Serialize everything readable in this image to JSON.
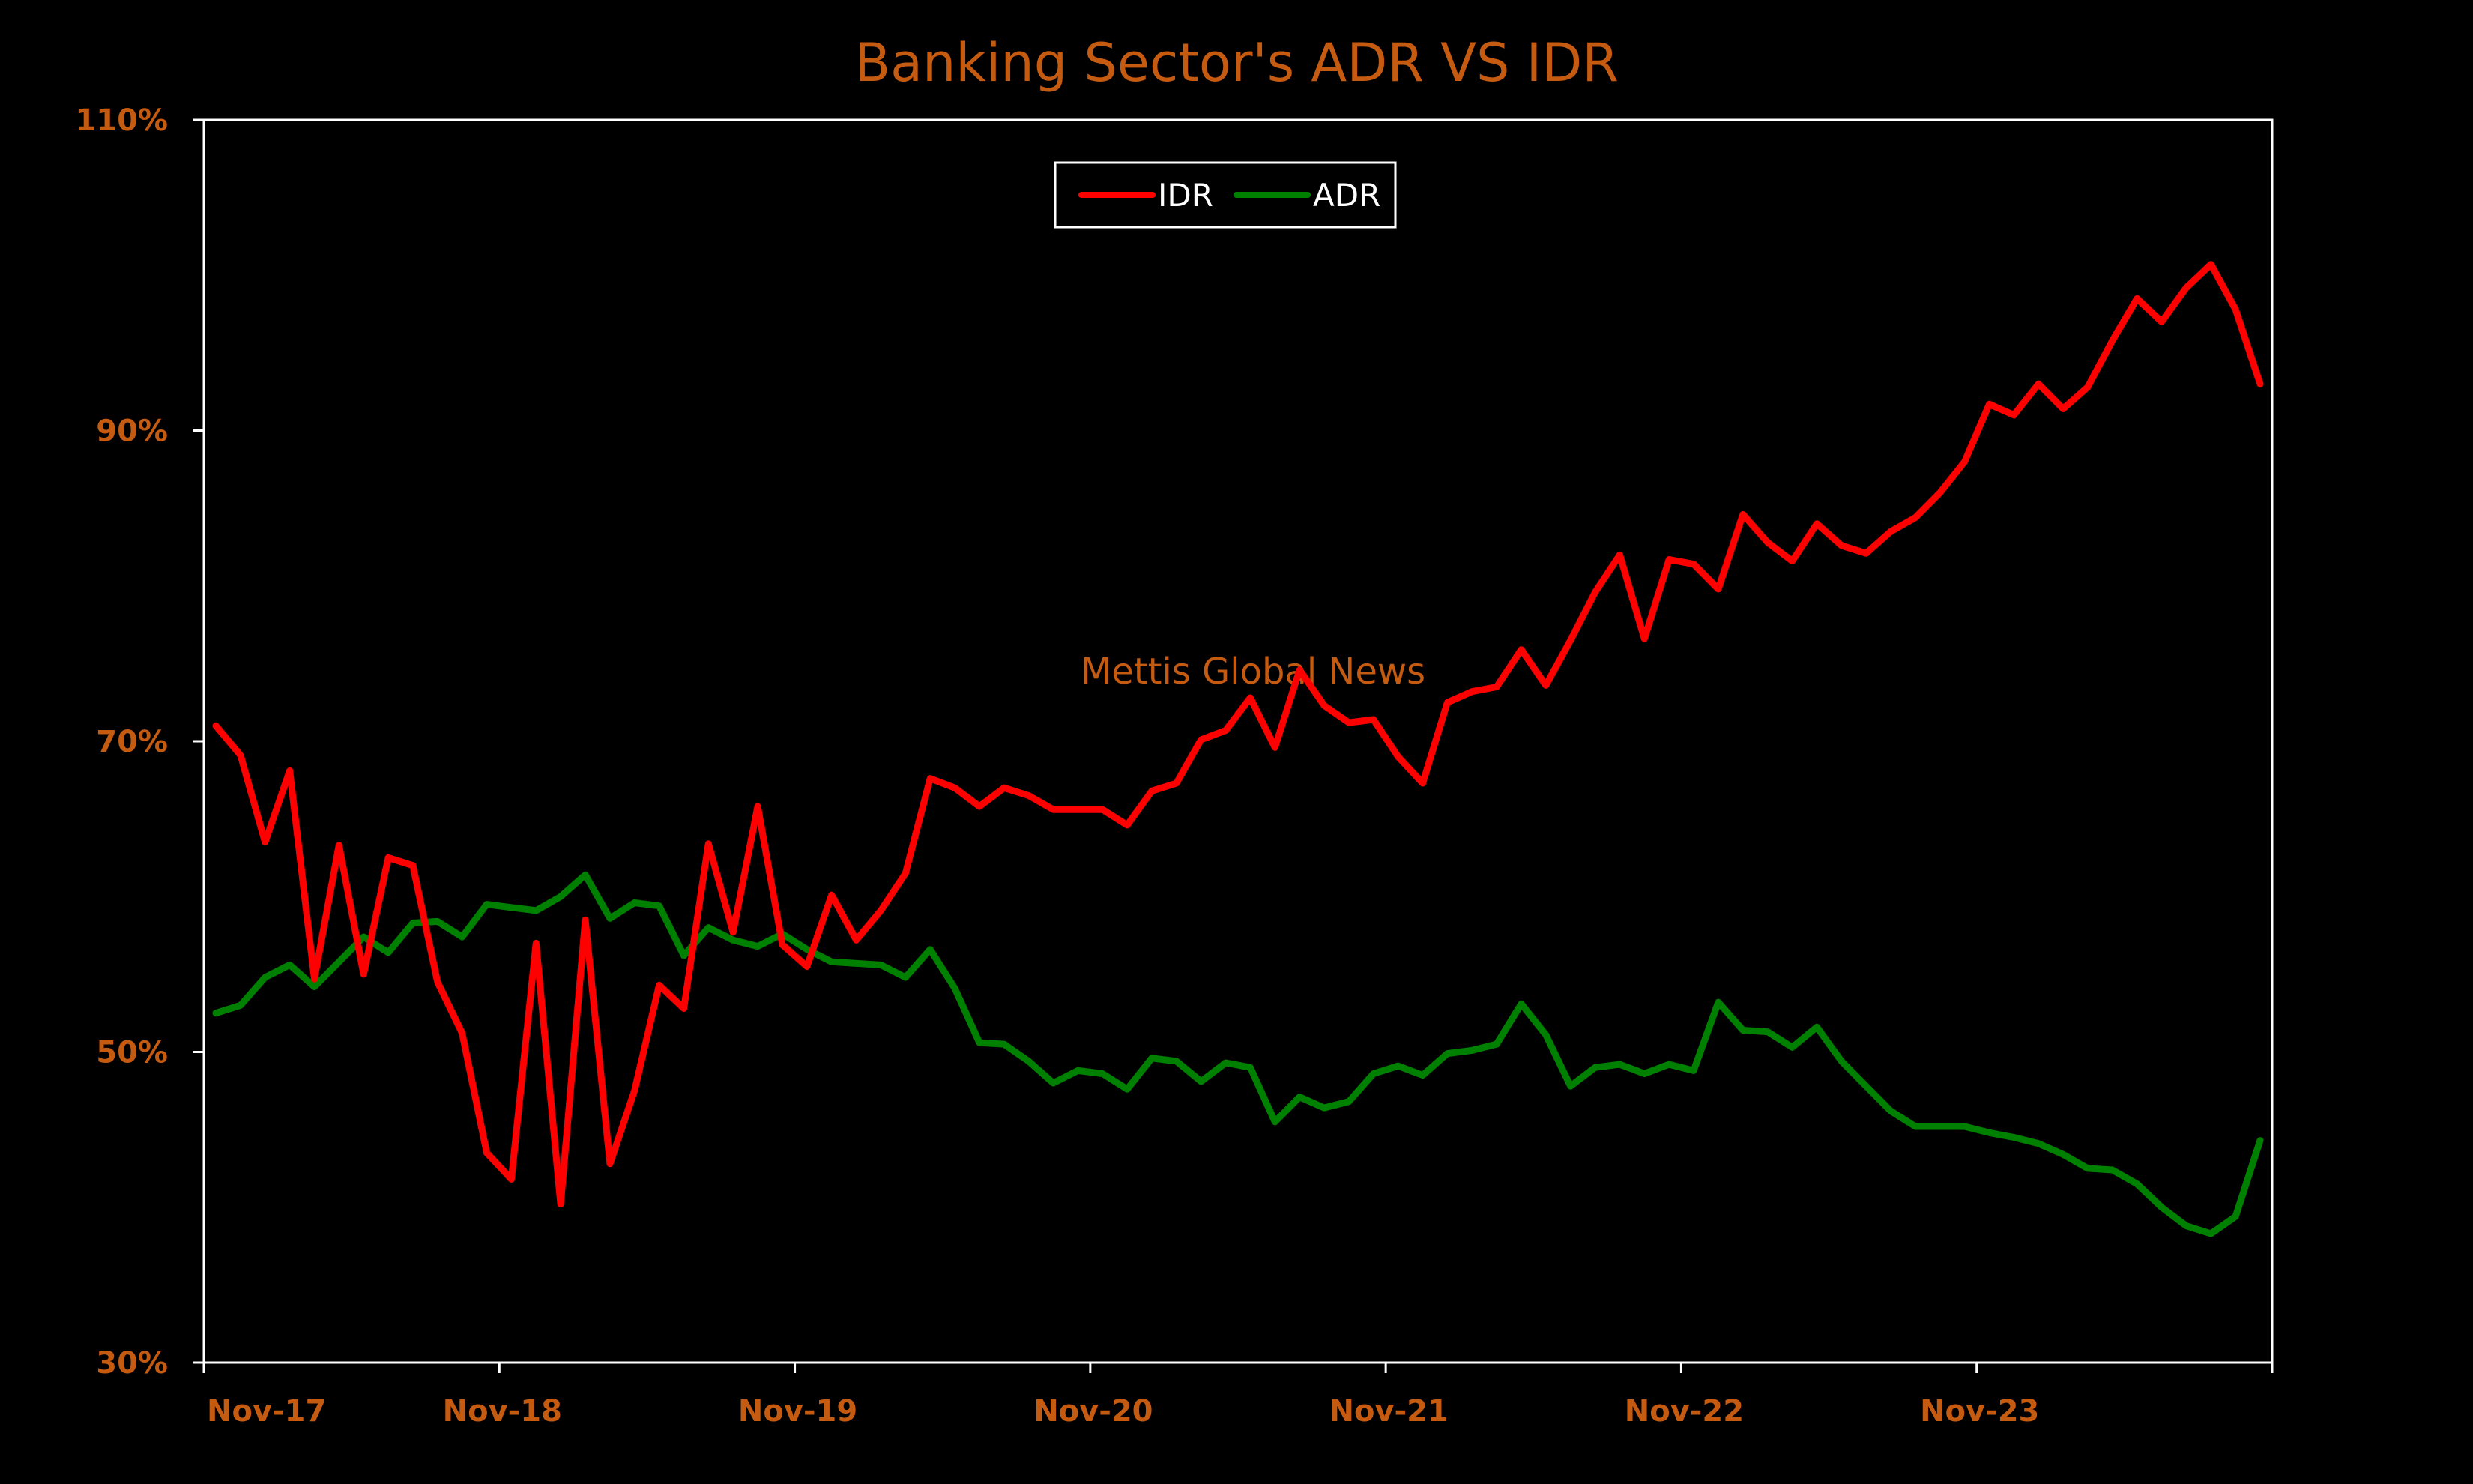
{
  "chart_data": {
    "type": "line",
    "title": "Banking Sector's ADR VS IDR",
    "xlabel": "",
    "ylabel": "",
    "x": [
      "Nov-17",
      "Dec-17",
      "Jan-18",
      "Feb-18",
      "Mar-18",
      "Apr-18",
      "May-18",
      "Jun-18",
      "Jul-18",
      "Aug-18",
      "Sep-18",
      "Oct-18",
      "Nov-18",
      "Dec-18",
      "Jan-19",
      "Feb-19",
      "Mar-19",
      "Apr-19",
      "May-19",
      "Jun-19",
      "Jul-19",
      "Aug-19",
      "Sep-19",
      "Oct-19",
      "Nov-19",
      "Dec-19",
      "Jan-20",
      "Feb-20",
      "Mar-20",
      "Apr-20",
      "May-20",
      "Jun-20",
      "Jul-20",
      "Aug-20",
      "Sep-20",
      "Oct-20",
      "Nov-20",
      "Dec-20",
      "Jan-21",
      "Feb-21",
      "Mar-21",
      "Apr-21",
      "May-21",
      "Jun-21",
      "Jul-21",
      "Aug-21",
      "Sep-21",
      "Oct-21",
      "Nov-21",
      "Dec-21",
      "Jan-22",
      "Feb-22",
      "Mar-22",
      "Apr-22",
      "May-22",
      "Jun-22",
      "Jul-22",
      "Aug-22",
      "Sep-22",
      "Oct-22",
      "Nov-22",
      "Dec-22",
      "Jan-23",
      "Feb-23",
      "Mar-23",
      "Apr-23",
      "May-23",
      "Jun-23",
      "Jul-23",
      "Aug-23",
      "Sep-23",
      "Oct-23",
      "Nov-23",
      "Dec-23",
      "Jan-24",
      "Feb-24",
      "Mar-24",
      "Apr-24",
      "May-24",
      "Jun-24",
      "Jul-24",
      "Aug-24",
      "Sep-24",
      "Oct-24"
    ],
    "x_tick_labels": [
      "Nov-17",
      "Nov-18",
      "Nov-19",
      "Nov-20",
      "Nov-21",
      "Nov-22",
      "Nov-23"
    ],
    "y_tick_labels": [
      "110%",
      "90%",
      "70%",
      "50%",
      "30%"
    ],
    "ylim": [
      30,
      110
    ],
    "y_ticks": [
      30,
      50,
      70,
      90,
      110
    ],
    "grid": false,
    "legend_position": "top-center",
    "series": [
      {
        "name": "IDR",
        "color": "#ff0000",
        "values": [
          71.0,
          69.1,
          63.5,
          68.1,
          54.7,
          63.3,
          55.0,
          62.5,
          62.0,
          54.5,
          51.2,
          43.5,
          41.8,
          57.0,
          40.2,
          58.5,
          42.8,
          47.5,
          54.3,
          52.8,
          63.4,
          57.7,
          65.8,
          56.9,
          55.5,
          60.1,
          57.2,
          59.1,
          61.5,
          67.6,
          67.0,
          65.8,
          67.0,
          66.5,
          65.6,
          65.6,
          65.6,
          64.6,
          66.8,
          67.3,
          70.1,
          70.7,
          72.8,
          69.6,
          74.6,
          72.3,
          71.2,
          71.4,
          69.0,
          67.3,
          72.5,
          73.2,
          73.5,
          75.9,
          73.6,
          76.5,
          79.6,
          82.0,
          76.6,
          81.7,
          81.4,
          79.8,
          84.6,
          82.8,
          81.6,
          84.0,
          82.6,
          82.1,
          83.5,
          84.4,
          86.0,
          88.0,
          91.7,
          91.0,
          93.0,
          91.4,
          92.8,
          95.8,
          98.5,
          97.0,
          99.2,
          100.7,
          97.8,
          93.0
        ]
      },
      {
        "name": "ADR",
        "color": "#008000",
        "values": [
          52.5,
          53.0,
          54.8,
          55.6,
          54.2,
          55.8,
          57.4,
          56.4,
          58.3,
          58.4,
          57.4,
          59.5,
          59.3,
          59.1,
          60.0,
          61.4,
          58.6,
          59.6,
          59.4,
          56.2,
          58.0,
          57.2,
          56.8,
          57.6,
          56.6,
          55.8,
          55.7,
          55.6,
          54.8,
          56.6,
          54.1,
          50.6,
          50.5,
          49.4,
          48.0,
          48.8,
          48.6,
          47.6,
          49.6,
          49.4,
          48.1,
          49.3,
          49.0,
          45.5,
          47.1,
          46.4,
          46.8,
          48.6,
          49.1,
          48.5,
          49.9,
          50.1,
          50.5,
          53.1,
          51.1,
          47.8,
          49.0,
          49.2,
          48.6,
          49.2,
          48.8,
          53.2,
          51.4,
          51.3,
          50.3,
          51.6,
          49.4,
          47.8,
          46.2,
          45.2,
          45.2,
          45.2,
          44.8,
          44.5,
          44.1,
          43.4,
          42.5,
          42.4,
          41.5,
          40.0,
          38.8,
          38.3,
          39.4,
          44.3
        ]
      }
    ],
    "annotations": [
      {
        "text": "Mettis Global News"
      }
    ],
    "colors": {
      "background": "#000000",
      "plot_border": "#ffffff",
      "title_color": "#c55a11",
      "tick_color": "#c55a11",
      "watermark_color": "#c55a11"
    }
  }
}
